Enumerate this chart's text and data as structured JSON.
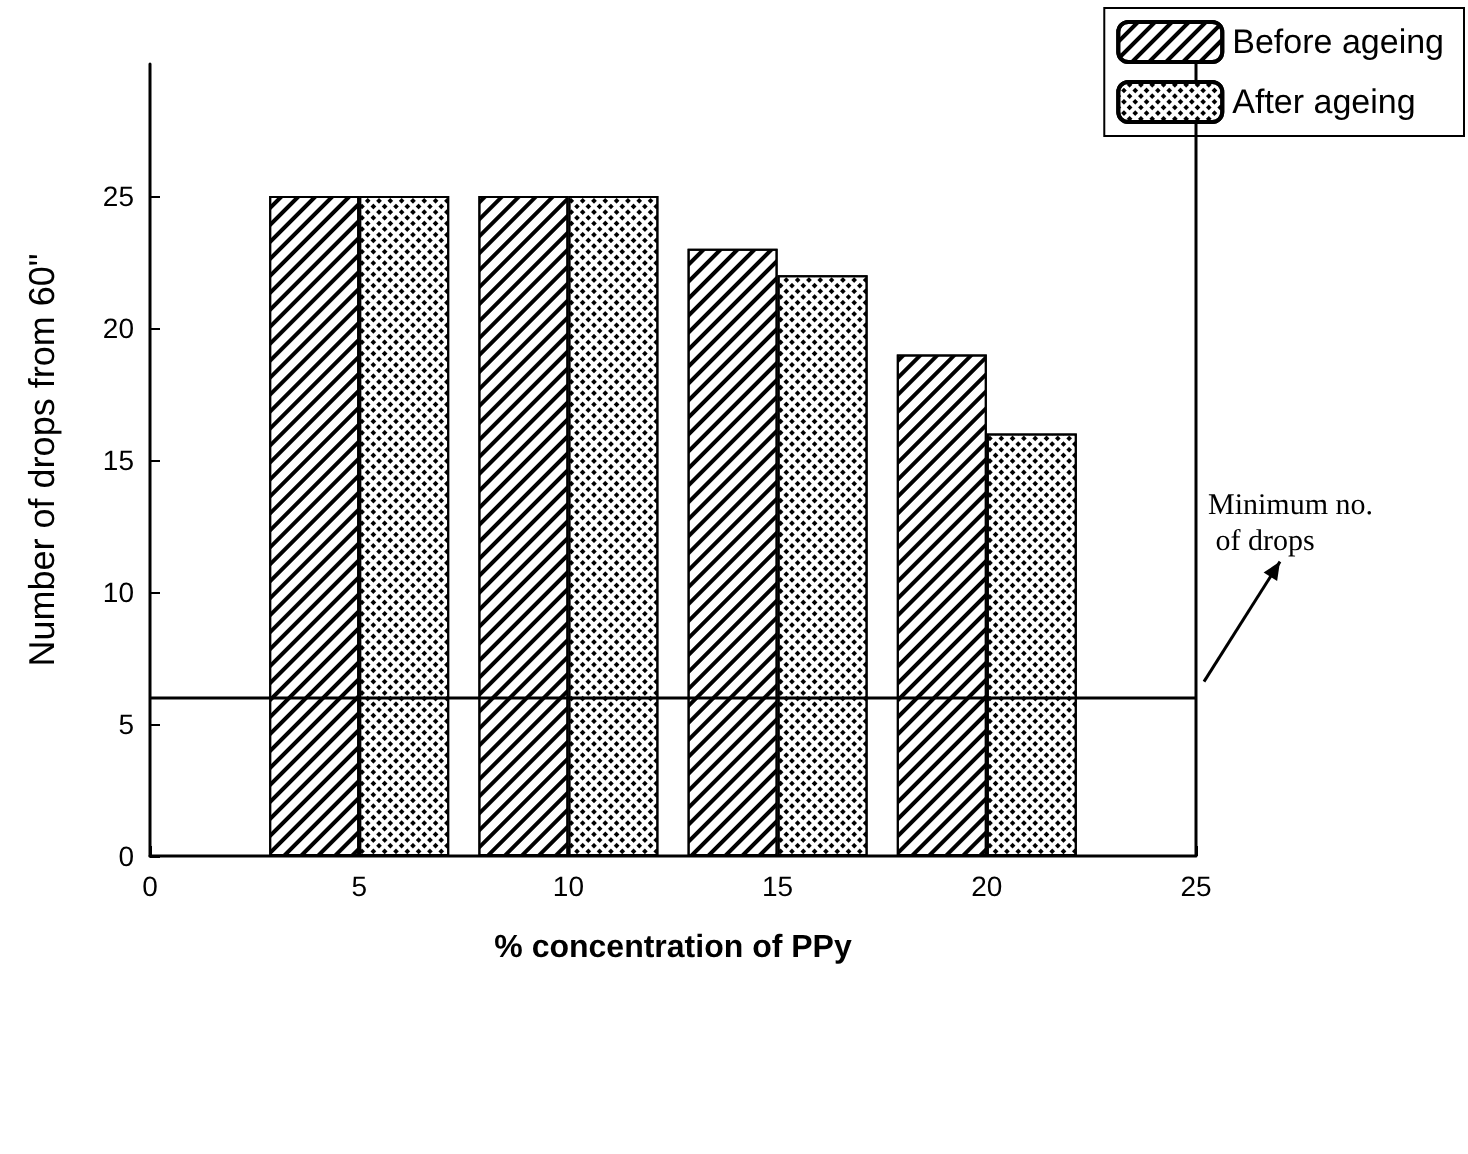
{
  "chart_data": {
    "type": "bar",
    "xlabel": "% concentration of PPy",
    "ylabel": "Number of drops from 60\"",
    "x": [
      5,
      10,
      15,
      20
    ],
    "series": [
      {
        "name": "Before ageing",
        "color": "#000000",
        "values": [
          25,
          25,
          23,
          19
        ]
      },
      {
        "name": "After ageing",
        "color": "#000000",
        "values": [
          25,
          25,
          22,
          16
        ]
      }
    ],
    "xlim": [
      0,
      25
    ],
    "xticks": [
      0,
      5,
      10,
      15,
      20,
      25
    ],
    "ylim": [
      0,
      30
    ],
    "yticks": [
      0,
      5,
      10,
      15,
      20,
      25
    ],
    "ref_lines": [
      {
        "axis": "y",
        "value": 6,
        "color": "#000000"
      }
    ],
    "annotations": [
      "Minimum no.\n of drops"
    ],
    "grid": false,
    "legend": "top right"
  }
}
